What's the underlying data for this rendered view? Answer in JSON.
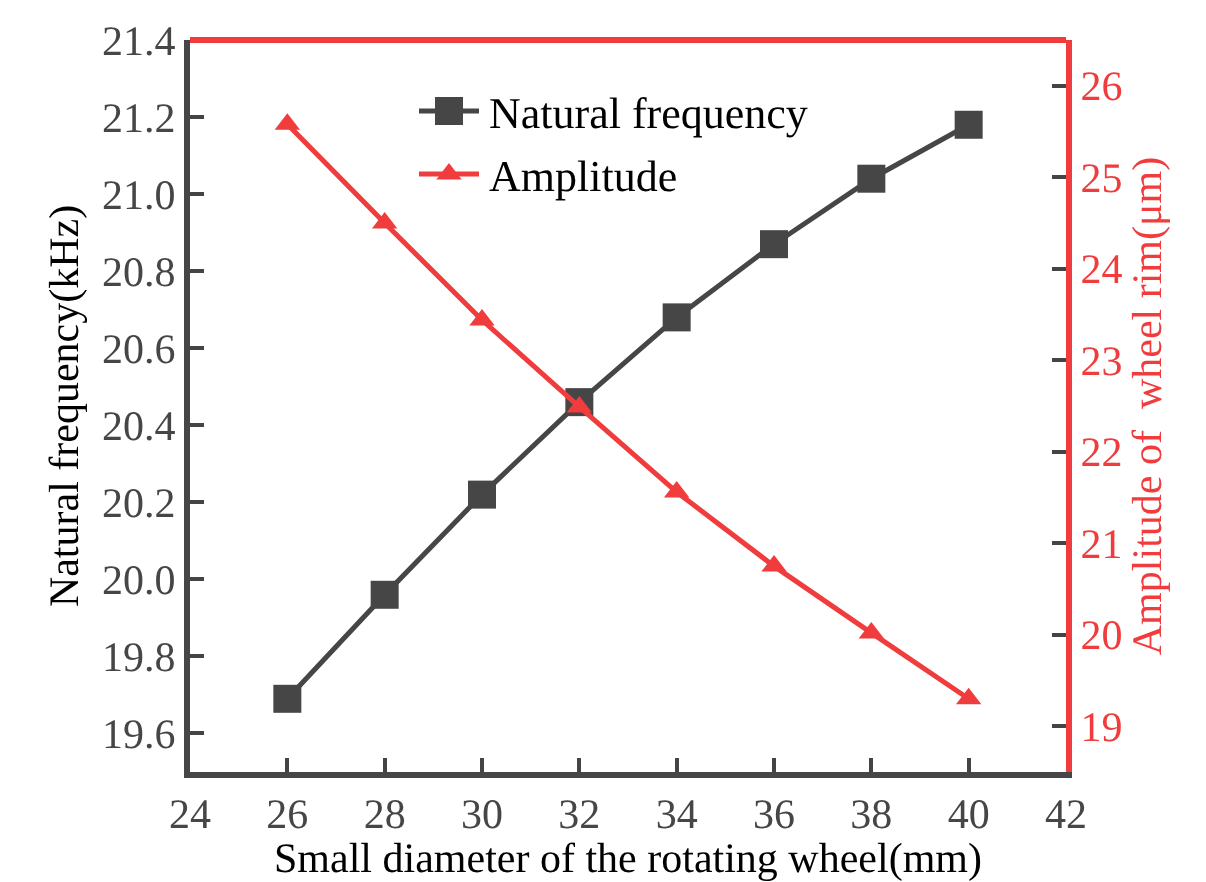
{
  "chart_data": {
    "type": "line",
    "xlabel": "Small diameter of the rotating wheel(mm)",
    "ylabel": "Natural frequency(kHz)",
    "y2label": "Amplitude of  wheel rim(μm)",
    "x": [
      26,
      28,
      30,
      32,
      34,
      36,
      38,
      40
    ],
    "series": [
      {
        "name": "Natural frequency",
        "color": "#464646",
        "marker": "square",
        "values": [
          19.69,
          19.96,
          20.22,
          20.46,
          20.68,
          20.87,
          21.04,
          21.18
        ]
      },
      {
        "name": "Amplitude",
        "color": "#f03c3c",
        "marker": "triangle",
        "axis": "y2",
        "values": [
          25.58,
          24.5,
          23.44,
          22.49,
          21.56,
          20.75,
          20.02,
          19.3
        ]
      }
    ],
    "xlim": [
      24,
      42
    ],
    "xticks": [
      24,
      26,
      28,
      30,
      32,
      34,
      36,
      38,
      40,
      42
    ],
    "ylim": [
      19.5,
      21.4
    ],
    "yticks": [
      {
        "value": 19.6,
        "label": "19.6"
      },
      {
        "value": 19.8,
        "label": "19.8"
      },
      {
        "value": 20.0,
        "label": "20.0"
      },
      {
        "value": 20.2,
        "label": "20.2"
      },
      {
        "value": 20.4,
        "label": "20.4"
      },
      {
        "value": 20.6,
        "label": "20.6"
      },
      {
        "value": 20.8,
        "label": "20.8"
      },
      {
        "value": 21.0,
        "label": "21.0"
      },
      {
        "value": 21.2,
        "label": "21.2"
      },
      {
        "value": 21.4,
        "label": "21.4"
      }
    ],
    "y2lim": [
      18.5,
      26.5
    ],
    "y2ticks": [
      19,
      20,
      21,
      22,
      23,
      24,
      25,
      26
    ],
    "legend": "top",
    "grid": false,
    "line_style": "solid"
  }
}
